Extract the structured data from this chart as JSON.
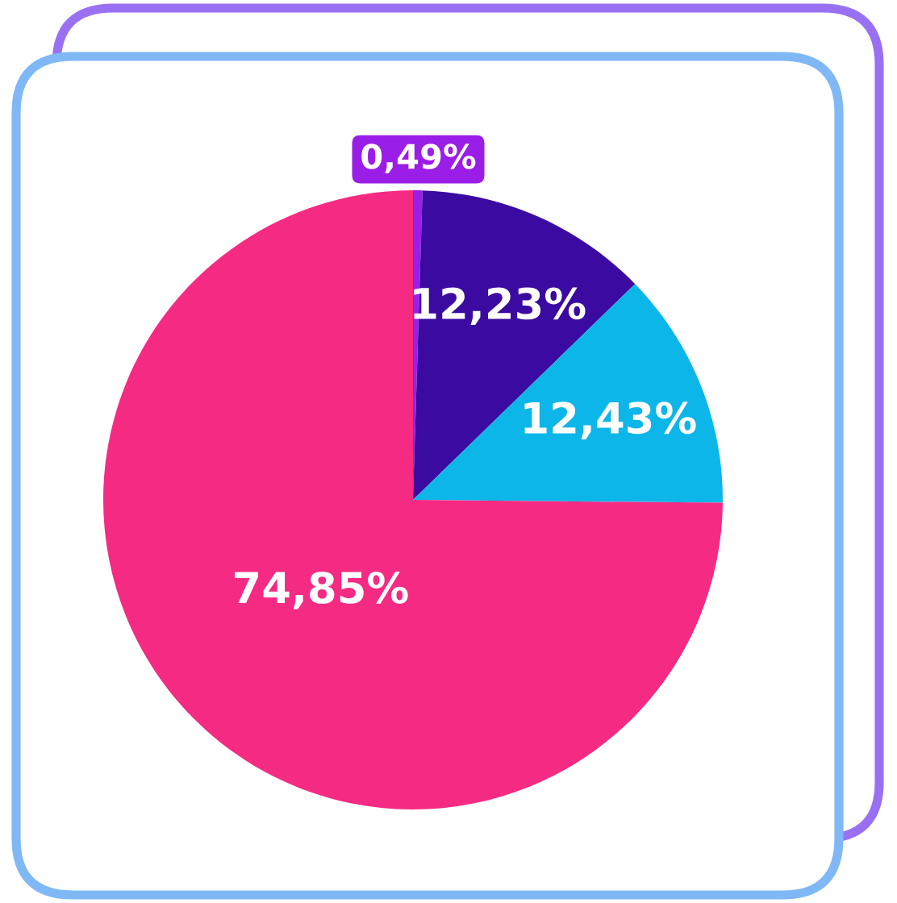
{
  "chart_data": {
    "type": "pie",
    "categories": [
      null,
      null,
      null,
      null
    ],
    "values": [
      0.49,
      12.23,
      12.43,
      74.85
    ],
    "colors": [
      "#9b1de8",
      "#3b0aa0",
      "#0db6e9",
      "#f52a83"
    ],
    "value_labels": [
      "0,49%",
      "12,23%",
      "12,43%",
      "74,85%"
    ]
  }
}
